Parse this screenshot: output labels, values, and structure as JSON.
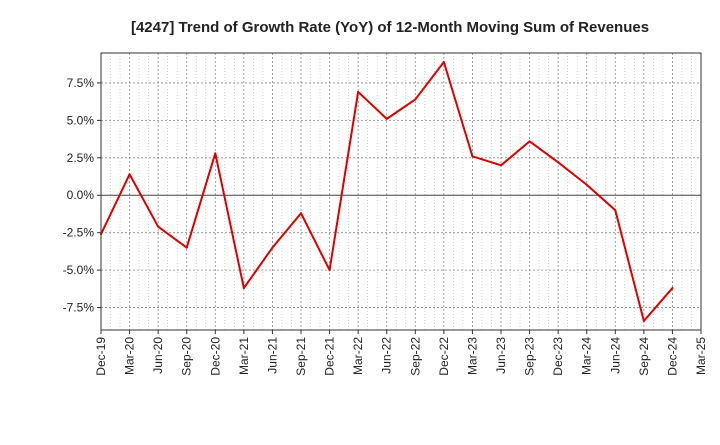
{
  "chart_data": {
    "type": "line",
    "title": "[4247]  Trend of Growth Rate (YoY) of 12-Month Moving Sum of Revenues",
    "xlabel": "",
    "ylabel": "",
    "x_tick_labels": [
      "Dec-19",
      "Mar-20",
      "Jun-20",
      "Sep-20",
      "Dec-20",
      "Mar-21",
      "Jun-21",
      "Sep-21",
      "Dec-21",
      "Mar-22",
      "Jun-22",
      "Sep-22",
      "Dec-22",
      "Mar-23",
      "Jun-23",
      "Sep-23",
      "Dec-23",
      "Mar-24",
      "Jun-24",
      "Sep-24",
      "Dec-24",
      "Mar-25"
    ],
    "y_tick_labels": [
      "7.5%",
      "5.0%",
      "2.5%",
      "0.0%",
      "-2.5%",
      "-5.0%",
      "-7.5%"
    ],
    "y_tick_values": [
      7.5,
      5.0,
      2.5,
      0.0,
      -2.5,
      -5.0,
      -7.5
    ],
    "ylim": [
      -9.0,
      9.5
    ],
    "grid": true,
    "line_color": "#dd0000",
    "series": [
      {
        "x": [
          "Dec-19",
          "Mar-20",
          "Jun-20",
          "Sep-20",
          "Dec-20",
          "Mar-21",
          "Jun-21",
          "Sep-21",
          "Dec-21",
          "Mar-22",
          "Jun-22",
          "Sep-22",
          "Dec-22",
          "Mar-23",
          "Jun-23",
          "Sep-23",
          "Dec-23",
          "Mar-24",
          "Jun-24",
          "Sep-24",
          "Dec-24"
        ],
        "values": [
          -2.6,
          1.4,
          -2.1,
          -3.5,
          2.8,
          -6.2,
          -3.5,
          -1.2,
          -5.0,
          6.9,
          5.1,
          6.4,
          8.9,
          2.6,
          2.0,
          3.6,
          2.2,
          0.7,
          -1.0,
          -8.4,
          -6.2
        ]
      }
    ]
  }
}
